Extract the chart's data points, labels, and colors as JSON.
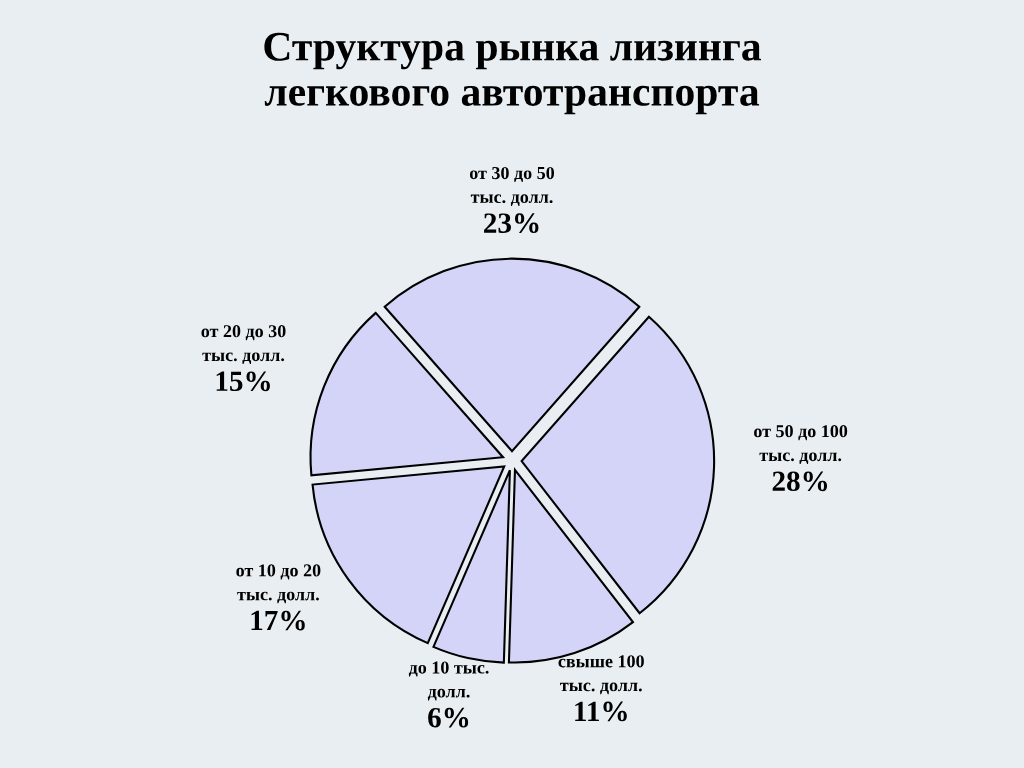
{
  "chart_data": {
    "type": "pie",
    "title": "Структура рынка лизинга\nлегкового автотранспорта",
    "categories": [
      "от 30 до 50\nтыс. долл.",
      "от 50 до 100\nтыс. долл.",
      "свыше 100\nтыс. долл.",
      "до 10 тыс.\nдолл.",
      "от 10 до 20\nтыс. долл.",
      "от 20 до 30\nтыс. долл."
    ],
    "values": [
      23,
      28,
      11,
      6,
      17,
      15
    ],
    "value_labels": [
      "23%",
      "28%",
      "11%",
      "6%",
      "17%",
      "15%"
    ],
    "colors": [
      "#d4d4f8",
      "#d4d4f8",
      "#d4d4f8",
      "#d4d4f8",
      "#d4d4f8",
      "#d4d4f8"
    ]
  }
}
